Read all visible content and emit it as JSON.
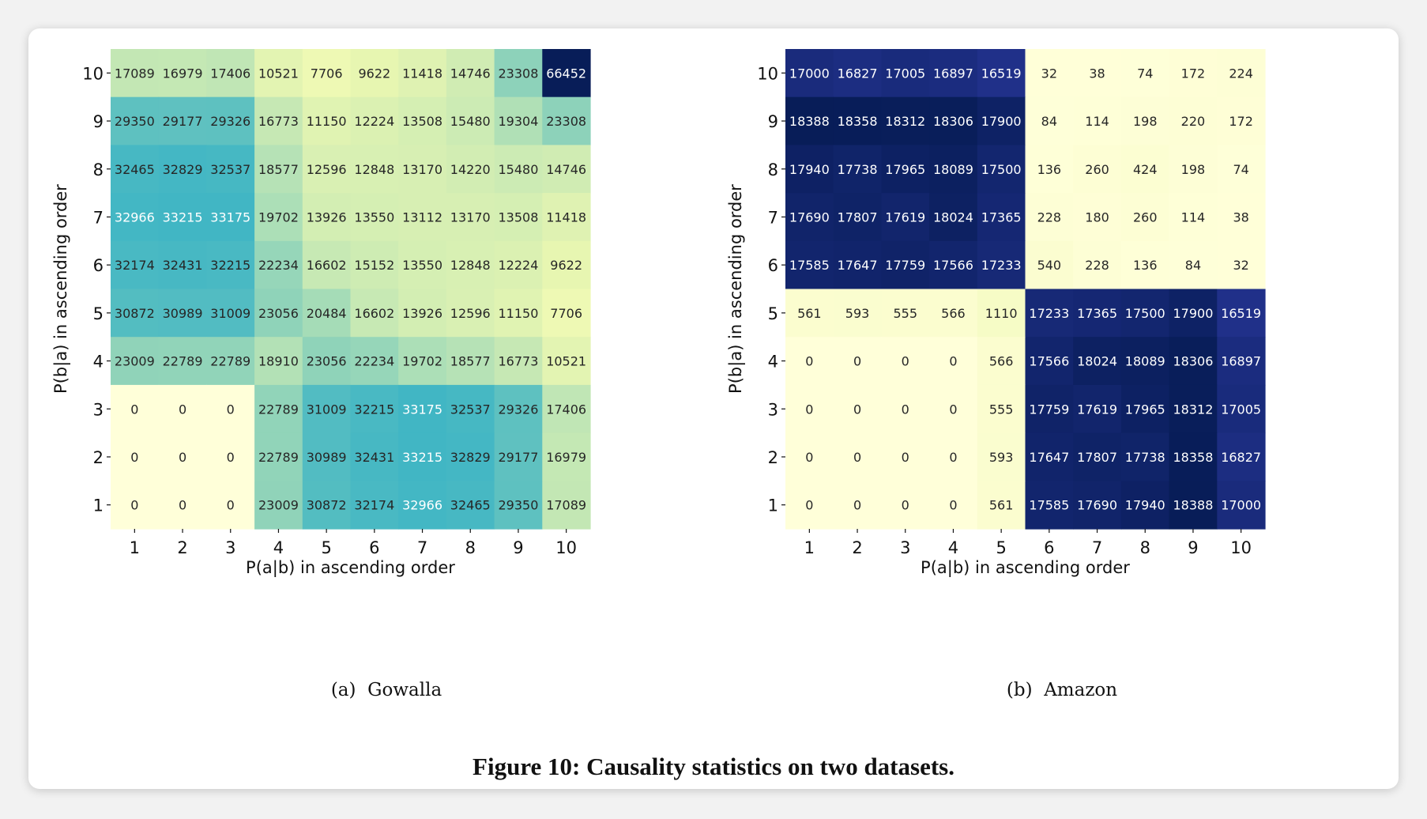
{
  "figure_caption": "Figure 10: Causality statistics on two datasets.",
  "panels": [
    {
      "caption_label": "(a)",
      "caption_name": "Gowalla"
    },
    {
      "caption_label": "(b)",
      "caption_name": "Amazon"
    }
  ],
  "chart_data": [
    {
      "type": "heatmap",
      "title": "Gowalla",
      "xlabel": "P(a|b) in ascending order",
      "ylabel": "P(b|a) in ascending order",
      "x_ticks": [
        "1",
        "2",
        "3",
        "4",
        "5",
        "6",
        "7",
        "8",
        "9",
        "10"
      ],
      "y_ticks": [
        "10",
        "9",
        "8",
        "7",
        "6",
        "5",
        "4",
        "3",
        "2",
        "1"
      ],
      "colormap": "YlGnBu",
      "value_range": [
        0,
        66452
      ],
      "values": [
        [
          17089,
          16979,
          17406,
          10521,
          7706,
          9622,
          11418,
          14746,
          23308,
          66452
        ],
        [
          29350,
          29177,
          29326,
          16773,
          11150,
          12224,
          13508,
          15480,
          19304,
          23308
        ],
        [
          32465,
          32829,
          32537,
          18577,
          12596,
          12848,
          13170,
          14220,
          15480,
          14746
        ],
        [
          32966,
          33215,
          33175,
          19702,
          13926,
          13550,
          13112,
          13170,
          13508,
          11418
        ],
        [
          32174,
          32431,
          32215,
          22234,
          16602,
          15152,
          13550,
          12848,
          12224,
          9622
        ],
        [
          30872,
          30989,
          31009,
          23056,
          20484,
          16602,
          13926,
          12596,
          11150,
          7706
        ],
        [
          23009,
          22789,
          22789,
          18910,
          23056,
          22234,
          19702,
          18577,
          16773,
          10521
        ],
        [
          0,
          0,
          0,
          22789,
          31009,
          32215,
          33175,
          32537,
          29326,
          17406
        ],
        [
          0,
          0,
          0,
          22789,
          30989,
          32431,
          33215,
          32829,
          29177,
          16979
        ],
        [
          0,
          0,
          0,
          23009,
          30872,
          32174,
          32966,
          32465,
          29350,
          17089
        ]
      ]
    },
    {
      "type": "heatmap",
      "title": "Amazon",
      "xlabel": "P(a|b) in ascending order",
      "ylabel": "P(b|a) in ascending order",
      "x_ticks": [
        "1",
        "2",
        "3",
        "4",
        "5",
        "6",
        "7",
        "8",
        "9",
        "10"
      ],
      "y_ticks": [
        "10",
        "9",
        "8",
        "7",
        "6",
        "5",
        "4",
        "3",
        "2",
        "1"
      ],
      "colormap": "YlGnBu",
      "value_range": [
        0,
        18388
      ],
      "values": [
        [
          17000,
          16827,
          17005,
          16897,
          16519,
          32,
          38,
          74,
          172,
          224
        ],
        [
          18388,
          18358,
          18312,
          18306,
          17900,
          84,
          114,
          198,
          220,
          172
        ],
        [
          17940,
          17738,
          17965,
          18089,
          17500,
          136,
          260,
          424,
          198,
          74
        ],
        [
          17690,
          17807,
          17619,
          18024,
          17365,
          228,
          180,
          260,
          114,
          38
        ],
        [
          17585,
          17647,
          17759,
          17566,
          17233,
          540,
          228,
          136,
          84,
          32
        ],
        [
          561,
          593,
          555,
          566,
          1110,
          17233,
          17365,
          17500,
          17900,
          16519
        ],
        [
          0,
          0,
          0,
          0,
          566,
          17566,
          18024,
          18089,
          18306,
          16897
        ],
        [
          0,
          0,
          0,
          0,
          555,
          17759,
          17619,
          17965,
          18312,
          17005
        ],
        [
          0,
          0,
          0,
          0,
          593,
          17647,
          17807,
          17738,
          18358,
          16827
        ],
        [
          0,
          0,
          0,
          0,
          561,
          17585,
          17690,
          17940,
          18388,
          17000
        ]
      ]
    }
  ]
}
